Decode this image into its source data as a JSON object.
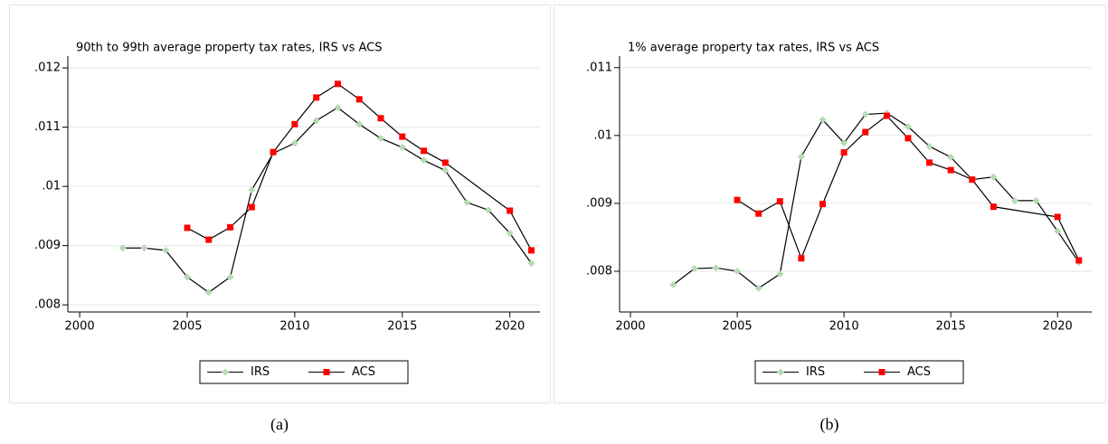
{
  "chart_data": [
    {
      "type": "line",
      "title": "90th to 99th average property tax rates, IRS vs ACS",
      "caption": "(a)",
      "xlim": [
        1999.45,
        2021.4
      ],
      "xticks": [
        2000,
        2005,
        2010,
        2015,
        2020
      ],
      "ylim": [
        0.00788,
        0.0122
      ],
      "yticks": [
        {
          "value": 0.008,
          "label": ".008"
        },
        {
          "value": 0.009,
          "label": ".009"
        },
        {
          "value": 0.01,
          "label": ".01"
        },
        {
          "value": 0.011,
          "label": ".011"
        },
        {
          "value": 0.012,
          "label": ".012"
        }
      ],
      "grid": true,
      "legend": "bottom",
      "line_color": "#000000",
      "series": [
        {
          "name": "IRS",
          "color": "#b5dbb5",
          "marker": "diamond",
          "x": [
            2002,
            2003,
            2004,
            2005,
            2006,
            2007,
            2008,
            2009,
            2010,
            2011,
            2012,
            2013,
            2014,
            2015,
            2016,
            2017,
            2018,
            2019,
            2020,
            2021
          ],
          "values": [
            0.00896,
            0.00896,
            0.00892,
            0.00847,
            0.00821,
            0.00847,
            0.00994,
            0.01056,
            0.01073,
            0.01111,
            0.01133,
            0.01105,
            0.01081,
            0.01066,
            0.01044,
            0.01027,
            0.00973,
            0.0096,
            0.00921,
            0.0087
          ]
        },
        {
          "name": "ACS",
          "color": "#ff0000",
          "marker": "square",
          "x": [
            2005,
            2006,
            2007,
            2008,
            2009,
            2010,
            2011,
            2012,
            2013,
            2014,
            2015,
            2016,
            2017,
            2020,
            2021
          ],
          "values": [
            0.0093,
            0.0091,
            0.00931,
            0.00965,
            0.01058,
            0.01105,
            0.0115,
            0.01173,
            0.01147,
            0.01115,
            0.01084,
            0.0106,
            0.0104,
            0.00959,
            0.00892
          ]
        }
      ]
    },
    {
      "type": "line",
      "title": "1% average property tax rates, IRS vs ACS",
      "caption": "(b)",
      "xlim": [
        1999.49,
        2021.6
      ],
      "xticks": [
        2000,
        2005,
        2010,
        2015,
        2020
      ],
      "ylim": [
        0.0074,
        0.01117
      ],
      "yticks": [
        {
          "value": 0.008,
          "label": ".008"
        },
        {
          "value": 0.009,
          "label": ".009"
        },
        {
          "value": 0.01,
          "label": ".01"
        },
        {
          "value": 0.011,
          "label": ".011"
        }
      ],
      "grid": true,
      "legend": "bottom",
      "line_color": "#000000",
      "series": [
        {
          "name": "IRS",
          "color": "#b5dbb5",
          "marker": "diamond",
          "x": [
            2002,
            2003,
            2004,
            2005,
            2006,
            2007,
            2008,
            2009,
            2010,
            2011,
            2012,
            2013,
            2014,
            2015,
            2016,
            2017,
            2018,
            2019,
            2020,
            2021
          ],
          "values": [
            0.0078,
            0.00804,
            0.00805,
            0.008,
            0.00775,
            0.00796,
            0.00969,
            0.01023,
            0.00989,
            0.01031,
            0.01033,
            0.01013,
            0.00984,
            0.00968,
            0.00935,
            0.00939,
            0.00904,
            0.00904,
            0.00859,
            0.00813
          ]
        },
        {
          "name": "ACS",
          "color": "#ff0000",
          "marker": "square",
          "x": [
            2005,
            2006,
            2007,
            2008,
            2009,
            2010,
            2011,
            2012,
            2013,
            2014,
            2015,
            2016,
            2017,
            2020,
            2021
          ],
          "values": [
            0.00905,
            0.00885,
            0.00903,
            0.00819,
            0.00899,
            0.00975,
            0.01005,
            0.01029,
            0.00996,
            0.0096,
            0.00949,
            0.00935,
            0.00895,
            0.0088,
            0.00816
          ]
        }
      ]
    }
  ]
}
